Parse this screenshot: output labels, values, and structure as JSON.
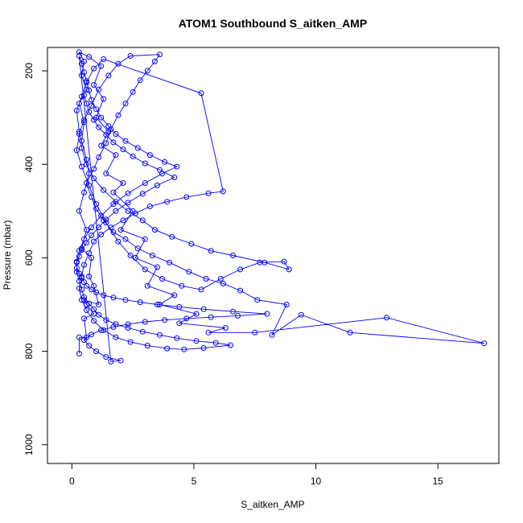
{
  "chart_data": {
    "type": "line",
    "title": "ATOM1 Southbound S_aitken_AMP",
    "xlabel": "S_aitken_AMP",
    "ylabel": "Pressure (mbar)",
    "xlim": [
      -1,
      17.5
    ],
    "ylim": [
      1040,
      150
    ],
    "y_reversed": true,
    "x_ticks": [
      0,
      5,
      10,
      15
    ],
    "y_ticks": [
      200,
      400,
      600,
      800,
      1000
    ],
    "grid": false,
    "legend": "none",
    "color": "#0000ff",
    "series": [
      {
        "marker": "open-circle",
        "points": [
          [
            0.3,
            805
          ],
          [
            0.3,
            770
          ],
          [
            0.6,
            770
          ],
          [
            0.5,
            730
          ],
          [
            0.9,
            720
          ],
          [
            0.6,
            700
          ],
          [
            0.5,
            690
          ],
          [
            1.1,
            700
          ],
          [
            0.9,
            660
          ],
          [
            0.7,
            640
          ],
          [
            0.8,
            600
          ],
          [
            0.4,
            580
          ],
          [
            0.6,
            540
          ],
          [
            0.3,
            500
          ],
          [
            0.5,
            460
          ],
          [
            0.7,
            420
          ],
          [
            0.6,
            390
          ],
          [
            0.4,
            350
          ],
          [
            0.5,
            310
          ],
          [
            0.3,
            270
          ],
          [
            0.6,
            240
          ],
          [
            0.4,
            210
          ],
          [
            0.5,
            180
          ],
          [
            0.3,
            160
          ],
          [
            0.7,
            170
          ],
          [
            1.2,
            190
          ],
          [
            0.9,
            230
          ],
          [
            1.3,
            260
          ],
          [
            1.0,
            300
          ],
          [
            1.5,
            330
          ],
          [
            1.2,
            360
          ],
          [
            1.8,
            380
          ],
          [
            1.4,
            420
          ],
          [
            2.1,
            440
          ],
          [
            1.7,
            460
          ],
          [
            2.5,
            500
          ],
          [
            2.0,
            540
          ],
          [
            3.0,
            560
          ],
          [
            2.6,
            600
          ],
          [
            3.5,
            620
          ],
          [
            3.1,
            660
          ],
          [
            4.2,
            680
          ],
          [
            3.6,
            700
          ],
          [
            5.1,
            720
          ],
          [
            4.4,
            740
          ],
          [
            6.3,
            750
          ],
          [
            5.6,
            760
          ],
          [
            7.5,
            760
          ],
          [
            12.9,
            728
          ],
          [
            16.9,
            783
          ],
          [
            11.4,
            760
          ],
          [
            9.4,
            722
          ],
          [
            8.2,
            765
          ],
          [
            8.8,
            700
          ],
          [
            7.6,
            690
          ],
          [
            6.9,
            670
          ],
          [
            6.2,
            655
          ],
          [
            5.5,
            645
          ],
          [
            4.8,
            630
          ],
          [
            4.0,
            610
          ],
          [
            3.3,
            595
          ],
          [
            2.7,
            580
          ],
          [
            2.2,
            560
          ],
          [
            1.7,
            545
          ],
          [
            1.3,
            520
          ],
          [
            1.0,
            495
          ],
          [
            0.8,
            470
          ],
          [
            0.6,
            440
          ],
          [
            0.9,
            410
          ],
          [
            1.1,
            385
          ],
          [
            1.4,
            355
          ],
          [
            1.6,
            325
          ],
          [
            1.9,
            295
          ],
          [
            2.2,
            270
          ],
          [
            2.5,
            245
          ],
          [
            2.8,
            220
          ],
          [
            3.1,
            200
          ],
          [
            3.4,
            180
          ],
          [
            3.6,
            165
          ],
          [
            2.4,
            168
          ],
          [
            1.9,
            185
          ],
          [
            1.5,
            210
          ],
          [
            1.1,
            240
          ],
          [
            0.8,
            275
          ],
          [
            0.5,
            305
          ],
          [
            0.3,
            335
          ],
          [
            0.2,
            370
          ],
          [
            0.4,
            405
          ],
          [
            0.7,
            445
          ],
          [
            1.0,
            485
          ],
          [
            1.4,
            525
          ],
          [
            1.9,
            565
          ],
          [
            2.4,
            595
          ],
          [
            3.0,
            625
          ],
          [
            3.7,
            645
          ],
          [
            4.5,
            660
          ],
          [
            5.3,
            668
          ],
          [
            6.1,
            645
          ],
          [
            6.9,
            625
          ],
          [
            7.7,
            610
          ],
          [
            8.7,
            608
          ],
          [
            8.9,
            625
          ],
          [
            7.9,
            610
          ],
          [
            6.6,
            595
          ],
          [
            5.7,
            585
          ],
          [
            4.9,
            570
          ],
          [
            4.1,
            555
          ],
          [
            3.4,
            540
          ],
          [
            2.9,
            520
          ],
          [
            2.3,
            500
          ],
          [
            1.8,
            480
          ],
          [
            1.3,
            455
          ],
          [
            0.9,
            430
          ],
          [
            0.6,
            400
          ],
          [
            0.4,
            365
          ],
          [
            0.3,
            330
          ],
          [
            0.2,
            285
          ],
          [
            0.4,
            255
          ],
          [
            0.6,
            225
          ],
          [
            0.9,
            195
          ],
          [
            1.3,
            175
          ],
          [
            5.3,
            248
          ],
          [
            6.2,
            458
          ],
          [
            5.6,
            462
          ],
          [
            4.7,
            470
          ],
          [
            3.9,
            480
          ],
          [
            3.2,
            490
          ],
          [
            2.6,
            505
          ],
          [
            2.1,
            520
          ],
          [
            1.6,
            535
          ],
          [
            1.2,
            550
          ],
          [
            0.9,
            565
          ],
          [
            0.7,
            590
          ],
          [
            0.5,
            615
          ],
          [
            0.4,
            640
          ],
          [
            0.3,
            665
          ],
          [
            0.4,
            690
          ],
          [
            0.6,
            712
          ],
          [
            0.9,
            735
          ],
          [
            1.3,
            755
          ],
          [
            1.8,
            770
          ],
          [
            2.4,
            780
          ],
          [
            3.1,
            788
          ],
          [
            3.9,
            794
          ],
          [
            4.6,
            796
          ],
          [
            5.4,
            793
          ],
          [
            6.5,
            787
          ],
          [
            5.9,
            782
          ],
          [
            5.1,
            778
          ],
          [
            4.3,
            772
          ],
          [
            3.6,
            765
          ],
          [
            2.9,
            758
          ],
          [
            2.3,
            750
          ],
          [
            1.8,
            742
          ],
          [
            1.4,
            733
          ],
          [
            1.1,
            722
          ],
          [
            0.9,
            710
          ],
          [
            0.7,
            698
          ],
          [
            0.5,
            684
          ],
          [
            0.4,
            668
          ],
          [
            0.3,
            650
          ],
          [
            0.2,
            630
          ],
          [
            0.2,
            608
          ],
          [
            0.3,
            585
          ],
          [
            0.5,
            560
          ],
          [
            0.8,
            535
          ],
          [
            1.2,
            510
          ],
          [
            1.7,
            485
          ],
          [
            2.3,
            462
          ],
          [
            3.0,
            440
          ],
          [
            3.7,
            420
          ],
          [
            4.3,
            405
          ],
          [
            3.8,
            395
          ],
          [
            3.2,
            380
          ],
          [
            2.7,
            365
          ],
          [
            2.2,
            350
          ],
          [
            1.8,
            335
          ],
          [
            1.5,
            318
          ],
          [
            1.2,
            300
          ],
          [
            1.0,
            282
          ],
          [
            0.8,
            262
          ],
          [
            0.7,
            242
          ],
          [
            0.6,
            222
          ],
          [
            0.5,
            203
          ],
          [
            0.4,
            185
          ],
          [
            0.3,
            168
          ],
          [
            1.6,
            822
          ],
          [
            2.0,
            820
          ],
          [
            1.4,
            812
          ],
          [
            1.0,
            800
          ],
          [
            0.7,
            788
          ],
          [
            0.5,
            776
          ],
          [
            0.8,
            764
          ],
          [
            1.2,
            755
          ],
          [
            1.7,
            748
          ],
          [
            2.3,
            742
          ],
          [
            3.0,
            737
          ],
          [
            3.8,
            733
          ],
          [
            4.7,
            730
          ],
          [
            5.7,
            727
          ],
          [
            6.8,
            724
          ],
          [
            8.0,
            720
          ],
          [
            6.6,
            715
          ],
          [
            5.4,
            710
          ],
          [
            4.4,
            705
          ],
          [
            3.5,
            700
          ],
          [
            2.8,
            695
          ],
          [
            2.2,
            690
          ],
          [
            1.7,
            685
          ],
          [
            1.3,
            680
          ],
          [
            1.0,
            674
          ],
          [
            0.8,
            668
          ],
          [
            0.6,
            660
          ],
          [
            0.5,
            652
          ],
          [
            0.4,
            643
          ],
          [
            0.3,
            633
          ],
          [
            0.2,
            622
          ],
          [
            0.2,
            610
          ],
          [
            0.3,
            597
          ],
          [
            0.4,
            583
          ],
          [
            0.6,
            568
          ],
          [
            0.8,
            552
          ],
          [
            1.1,
            535
          ],
          [
            1.4,
            518
          ],
          [
            1.8,
            500
          ],
          [
            2.3,
            482
          ],
          [
            2.9,
            463
          ],
          [
            3.5,
            445
          ],
          [
            4.2,
            428
          ],
          [
            3.6,
            412
          ],
          [
            3.0,
            398
          ],
          [
            2.5,
            383
          ],
          [
            2.1,
            368
          ],
          [
            1.7,
            353
          ],
          [
            1.4,
            337
          ],
          [
            1.1,
            321
          ],
          [
            0.9,
            305
          ],
          [
            0.7,
            288
          ],
          [
            0.6,
            270
          ],
          [
            0.5,
            252
          ]
        ]
      }
    ]
  }
}
